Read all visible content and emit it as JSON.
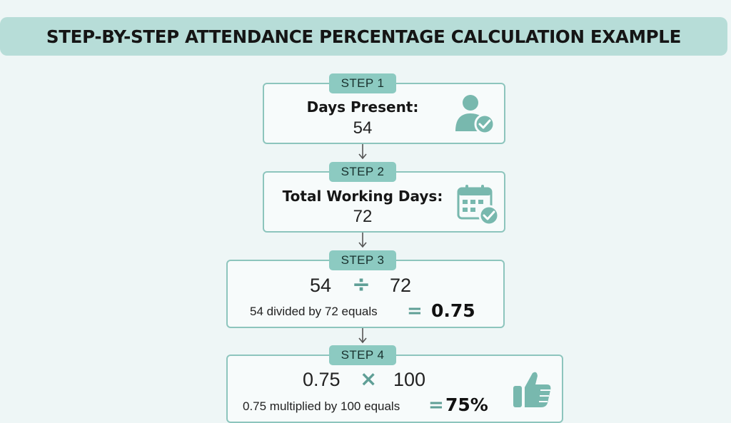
{
  "title": "STEP-BY-STEP ATTENDANCE PERCENTAGE CALCULATION EXAMPLE",
  "colors": {
    "accent": "#8ccac1",
    "border": "#8dc5bd",
    "icon": "#78b8ae",
    "background": "#eef6f6",
    "title_bar": "#b7ddd8"
  },
  "steps": [
    {
      "badge": "STEP 1",
      "label": "Days Present:",
      "value": "54",
      "icon": "user-check-icon"
    },
    {
      "badge": "STEP 2",
      "label": "Total Working Days:",
      "value": "72",
      "icon": "calendar-check-icon"
    },
    {
      "badge": "STEP 3",
      "left_operand": "54",
      "operator": "÷",
      "right_operand": "72",
      "description": "54 divided by 72 equals",
      "equals": "=",
      "result": "0.75"
    },
    {
      "badge": "STEP 4",
      "left_operand": "0.75",
      "operator": "×",
      "right_operand": "100",
      "description": "0.75 multiplied by 100 equals",
      "equals": "=",
      "result": "75%",
      "icon": "thumbs-up-icon"
    }
  ]
}
